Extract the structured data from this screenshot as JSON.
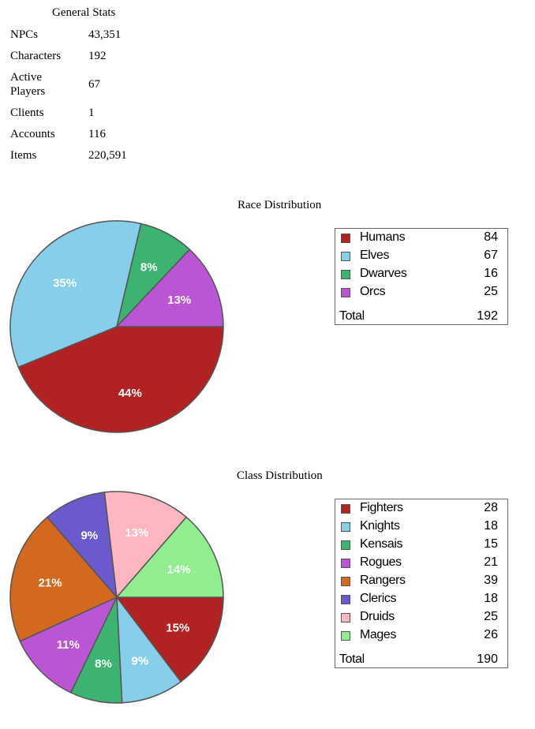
{
  "general_stats": {
    "title": "General Stats",
    "rows": [
      {
        "label": "NPCs",
        "value": "43,351"
      },
      {
        "label": "Characters",
        "value": "192"
      },
      {
        "label": "Active Players",
        "value": "67"
      },
      {
        "label": "Clients",
        "value": "1"
      },
      {
        "label": "Accounts",
        "value": "116"
      },
      {
        "label": "Items",
        "value": "220,591"
      }
    ]
  },
  "chart_data": [
    {
      "type": "pie",
      "title": "Race Distribution",
      "categories": [
        "Humans",
        "Elves",
        "Dwarves",
        "Orcs"
      ],
      "values": [
        84,
        67,
        16,
        25
      ],
      "colors": [
        "#b22222",
        "#87ceeb",
        "#3cb371",
        "#ba55d3"
      ],
      "slice_labels": [
        "44%",
        "35%",
        "8%",
        "13%"
      ],
      "total_label": "Total",
      "total": 192,
      "legend_placement": "right"
    },
    {
      "type": "pie",
      "title": "Class Distribution",
      "categories": [
        "Fighters",
        "Knights",
        "Kensais",
        "Rogues",
        "Rangers",
        "Clerics",
        "Druids",
        "Mages"
      ],
      "values": [
        28,
        18,
        15,
        21,
        39,
        18,
        25,
        26
      ],
      "colors": [
        "#b22222",
        "#87ceeb",
        "#3cb371",
        "#ba55d3",
        "#d2691e",
        "#6a5acd",
        "#ffb6c1",
        "#90ee90"
      ],
      "slice_labels": [
        "15%",
        "9%",
        "8%",
        "11%",
        "21%",
        "9%",
        "13%",
        "14%"
      ],
      "total_label": "Total",
      "total": 190,
      "legend_placement": "right"
    }
  ]
}
